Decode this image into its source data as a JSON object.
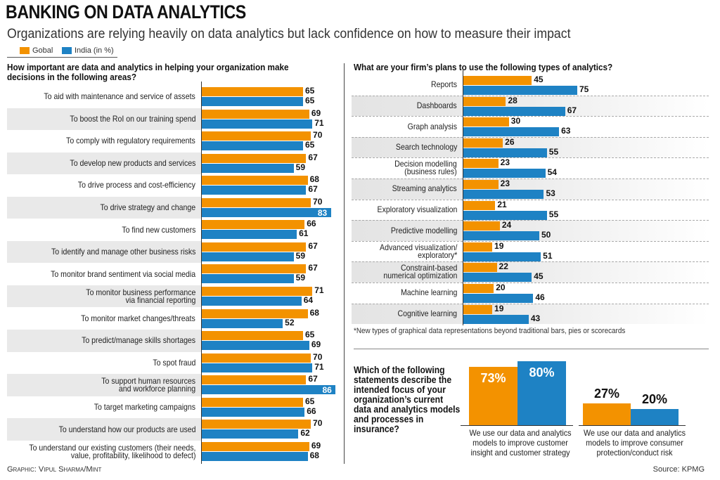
{
  "header": {
    "title": "BANKING ON DATA ANALYTICS",
    "subtitle": "Organizations are relying heavily on data analytics but lack confidence on how to measure their impact"
  },
  "legend": {
    "global": "Gobal",
    "india": "India (in %)"
  },
  "colors": {
    "global": "#F39200",
    "india": "#1E82C4"
  },
  "footer": {
    "credit": "Graphic: Vipul Sharma/Mint",
    "source": "Source: KPMG"
  },
  "chart_data": [
    {
      "type": "bar",
      "orientation": "horizontal",
      "title": "How important are data and analytics in helping your organization make decisions in the following areas?",
      "series_names": [
        "Gobal",
        "India (in %)"
      ],
      "categories": [
        "To aid with maintenance and service of assets",
        "To boost the RoI on our training spend",
        "To comply with regulatory requirements",
        "To develop new products and services",
        "To drive process and cost-efficiency",
        "To drive strategy and change",
        "To find new customers",
        "To identify and manage other business risks",
        "To monitor brand sentiment via social media",
        "To monitor business performance\nvia financial reporting",
        "To monitor market changes/threats",
        "To predict/manage skills shortages",
        "To spot fraud",
        "To support human resources\nand workforce planning",
        "To target marketing campaigns",
        "To understand how our products are used",
        "To understand our existing customers (their needs,\nvalue, profitability, likelihood to defect)"
      ],
      "series": [
        {
          "name": "Gobal",
          "values": [
            65,
            69,
            70,
            67,
            68,
            70,
            66,
            67,
            67,
            71,
            68,
            65,
            70,
            67,
            65,
            70,
            69
          ]
        },
        {
          "name": "India (in %)",
          "values": [
            65,
            71,
            65,
            59,
            67,
            83,
            61,
            59,
            59,
            64,
            52,
            69,
            71,
            86,
            66,
            62,
            68
          ]
        }
      ]
    },
    {
      "type": "bar",
      "orientation": "horizontal",
      "title": "What are your firm’s plans to use the following types of analytics?",
      "categories": [
        "Reports",
        "Dashboards",
        "Graph analysis",
        "Search technology",
        "Decision modelling\n(business rules)",
        "Streaming analytics",
        "Exploratory visualization",
        "Predictive modelling",
        "Advanced visualization/\nexploratory*",
        "Constraint-based\nnumerical optimization",
        "Machine learning",
        "Cognitive learning"
      ],
      "series": [
        {
          "name": "Gobal",
          "values": [
            45,
            28,
            30,
            26,
            23,
            23,
            21,
            24,
            19,
            22,
            20,
            19
          ]
        },
        {
          "name": "India (in %)",
          "values": [
            75,
            67,
            63,
            55,
            54,
            53,
            55,
            50,
            51,
            45,
            46,
            43
          ]
        }
      ],
      "footnote": "*New types of graphical data representations beyond traditional bars, pies or scorecards"
    },
    {
      "type": "bar",
      "orientation": "vertical",
      "title": "Which of the following statements describe the intended focus of your organization’s current data and analytics models and processes in insurance?",
      "categories": [
        "We use our data and analytics models to improve customer insight and customer strategy",
        "We use our data and analytics models to improve consumer protection/conduct risk"
      ],
      "series": [
        {
          "name": "Gobal",
          "values": [
            73,
            27
          ]
        },
        {
          "name": "India (in %)",
          "values": [
            80,
            20
          ]
        }
      ],
      "labels": [
        [
          "73%",
          "80%"
        ],
        [
          "27%",
          "20%"
        ]
      ]
    }
  ]
}
